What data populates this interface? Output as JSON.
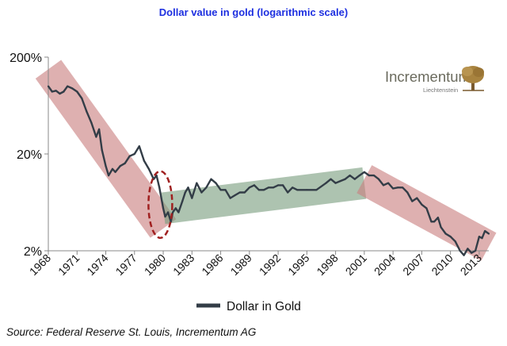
{
  "title": "Dollar value in gold (logarithmic scale)",
  "source": "Source: Federal Reserve St. Louis, Incrementum AG",
  "logo": {
    "name": "Incrementum",
    "sub": "Liechtenstein"
  },
  "colors": {
    "line": "#333d47",
    "down_trend": "#c98080",
    "up_trend": "#7a9e80",
    "title": "#1d2fe0",
    "highlight": "#a02020"
  },
  "chart_data": {
    "type": "line",
    "title": "Dollar value in gold (logarithmic scale)",
    "xlabel": "",
    "ylabel": "",
    "yscale": "log",
    "ylim": [
      2,
      200
    ],
    "xlim": [
      1968,
      2014
    ],
    "y_ticks": [
      2,
      20,
      200
    ],
    "y_tick_labels": [
      "2%",
      "20%",
      "200%"
    ],
    "x_ticks": [
      1968,
      1971,
      1974,
      1977,
      1980,
      1983,
      1986,
      1989,
      1992,
      1995,
      1998,
      2001,
      2004,
      2007,
      2010,
      2013
    ],
    "x_tick_labels": [
      "1968",
      "1971",
      "1974",
      "1977",
      "1980",
      "1983",
      "1986",
      "1989",
      "1992",
      "1995",
      "1998",
      "2001",
      "2004",
      "2007",
      "2010",
      "2013"
    ],
    "legend": {
      "position": "bottom-center",
      "entries": [
        "Dollar in Gold"
      ]
    },
    "grid": false,
    "series": [
      {
        "name": "Dollar in Gold",
        "x": [
          1968.0,
          1968.4,
          1968.8,
          1969.2,
          1969.6,
          1970.0,
          1970.5,
          1971.0,
          1971.5,
          1972.0,
          1972.5,
          1973.0,
          1973.3,
          1973.6,
          1974.0,
          1974.3,
          1974.7,
          1975.0,
          1975.5,
          1976.0,
          1976.5,
          1977.0,
          1977.5,
          1978.0,
          1978.5,
          1979.0,
          1979.3,
          1979.6,
          1980.0,
          1980.2,
          1980.5,
          1980.8,
          1981.0,
          1981.3,
          1981.6,
          1982.0,
          1982.3,
          1982.6,
          1983.0,
          1983.5,
          1984.0,
          1984.5,
          1985.0,
          1985.5,
          1986.0,
          1986.5,
          1987.0,
          1987.5,
          1988.0,
          1988.5,
          1989.0,
          1989.5,
          1990.0,
          1990.5,
          1991.0,
          1991.5,
          1992.0,
          1992.5,
          1993.0,
          1993.5,
          1994.0,
          1995.0,
          1996.0,
          1997.0,
          1997.5,
          1998.0,
          1998.5,
          1999.0,
          1999.5,
          2000.0,
          2000.5,
          2001.0,
          2001.5,
          2002.0,
          2002.5,
          2003.0,
          2003.5,
          2004.0,
          2004.5,
          2005.0,
          2005.5,
          2006.0,
          2006.5,
          2007.0,
          2007.5,
          2008.0,
          2008.3,
          2008.7,
          2009.0,
          2009.5,
          2010.0,
          2010.5,
          2011.0,
          2011.4,
          2011.8,
          2012.2,
          2012.6,
          2013.0,
          2013.3,
          2013.6,
          2014.0
        ],
        "y": [
          100,
          88,
          90,
          84,
          88,
          100,
          95,
          88,
          75,
          55,
          42,
          30,
          36,
          22,
          15,
          12,
          14,
          13,
          15,
          16,
          19,
          20,
          24,
          17,
          14,
          11,
          12,
          9,
          5.5,
          4.5,
          5,
          4.0,
          5,
          5.5,
          5.0,
          6.5,
          8,
          9,
          7,
          10,
          8,
          9,
          11,
          10,
          8.5,
          8.5,
          7,
          7.5,
          8,
          8,
          9,
          9.5,
          8.5,
          8.5,
          9,
          9,
          9.5,
          9.5,
          8,
          9,
          8.5,
          8.5,
          8.5,
          10,
          11,
          10,
          10.5,
          11,
          12,
          11,
          12,
          13,
          12,
          12,
          11,
          9.5,
          10,
          8.8,
          9,
          9,
          8,
          6.5,
          7,
          6,
          5.5,
          4,
          4,
          4.4,
          3.5,
          3.0,
          2.8,
          2.5,
          2.0,
          1.8,
          2.1,
          1.9,
          2.0,
          2.8,
          2.7,
          3.2,
          3.0
        ]
      }
    ],
    "trend_bands": [
      {
        "kind": "down",
        "from": [
          1968.0,
          150
        ],
        "to": [
          1980.0,
          3.4
        ]
      },
      {
        "kind": "up",
        "from": [
          1980.0,
          5.5
        ],
        "to": [
          2001.0,
          10.0
        ]
      },
      {
        "kind": "down",
        "from": [
          2001.0,
          11.0
        ],
        "to": [
          2014.0,
          2.2
        ]
      }
    ],
    "highlight": {
      "center": [
        1979.7,
        6.0
      ]
    }
  }
}
